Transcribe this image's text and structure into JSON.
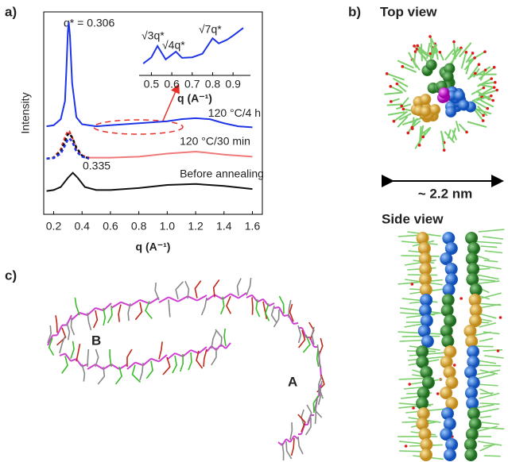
{
  "chart_data": [
    {
      "type": "line",
      "xlabel": "q (A⁻¹)",
      "ylabel": "Intensity",
      "xlim": [
        0.13,
        1.67
      ],
      "ylim": [
        0,
        10
      ],
      "xticks": [
        0.2,
        0.4,
        0.6,
        0.8,
        {
          "value": 1,
          "label": "1.0"
        },
        1.2,
        1.4,
        1.6
      ],
      "annotations": [
        "q* = 0.306",
        "0.335"
      ],
      "series": [
        {
          "name": "120 °C/4 h",
          "color": "#1f35e6",
          "style": "solid",
          "x": [
            0.15,
            0.2,
            0.25,
            0.28,
            0.29,
            0.3,
            0.306,
            0.315,
            0.33,
            0.36,
            0.4,
            0.5,
            0.6,
            0.8,
            1.0,
            1.1,
            1.2,
            1.3,
            1.4,
            1.5,
            1.6
          ],
          "values": [
            4.35,
            4.4,
            4.7,
            5.6,
            7.2,
            9.0,
            9.5,
            8.8,
            6.5,
            4.8,
            4.45,
            4.35,
            4.4,
            4.5,
            4.6,
            4.7,
            4.75,
            4.7,
            4.5,
            4.35,
            4.3
          ]
        },
        {
          "name": "120 °C/30 min",
          "color": "#f07a7a",
          "style": "solid",
          "x": [
            0.45,
            0.6,
            0.8,
            1.0,
            1.2,
            1.4,
            1.6
          ],
          "values": [
            2.8,
            2.8,
            2.85,
            3.0,
            3.1,
            2.95,
            2.85
          ]
        },
        {
          "color": "#e8302a",
          "style": "dashed",
          "x": [
            0.15,
            0.2,
            0.25,
            0.28,
            0.3,
            0.31,
            0.33,
            0.36,
            0.4,
            0.45
          ],
          "values": [
            2.75,
            2.8,
            3.2,
            3.8,
            4.1,
            4.1,
            3.8,
            3.2,
            2.9,
            2.8
          ]
        },
        {
          "color": "#111111",
          "style": "dashed",
          "x": [
            0.15,
            0.2,
            0.25,
            0.28,
            0.3,
            0.31,
            0.33,
            0.36,
            0.4,
            0.45
          ],
          "values": [
            2.75,
            2.8,
            3.1,
            3.6,
            3.95,
            4.0,
            3.8,
            3.3,
            2.9,
            2.75
          ]
        },
        {
          "color": "#1f35e6",
          "style": "dashed",
          "x": [
            0.15,
            0.2,
            0.25,
            0.28,
            0.3,
            0.31,
            0.33,
            0.36,
            0.4,
            0.45
          ],
          "values": [
            2.75,
            2.78,
            3.0,
            3.4,
            3.7,
            3.75,
            3.6,
            3.1,
            2.85,
            2.75
          ]
        },
        {
          "name": "Before annealing",
          "color": "#111111",
          "style": "solid",
          "x": [
            0.15,
            0.2,
            0.25,
            0.3,
            0.335,
            0.37,
            0.42,
            0.5,
            0.6,
            0.8,
            1.0,
            1.2,
            1.4,
            1.6
          ],
          "values": [
            1.15,
            1.2,
            1.35,
            1.8,
            2.05,
            1.8,
            1.35,
            1.2,
            1.2,
            1.3,
            1.45,
            1.5,
            1.4,
            1.25
          ]
        }
      ]
    },
    {
      "type": "line",
      "xlabel": "q (A⁻¹)",
      "xlim": [
        0.44,
        0.985
      ],
      "ylim": [
        0,
        10
      ],
      "xticks": [
        0.5,
        0.6,
        0.7,
        0.8,
        0.9
      ],
      "annotations": [
        "√3q*",
        "√4q*",
        "√7q*"
      ],
      "series": [
        {
          "color": "#1f35e6",
          "style": "solid",
          "x": [
            0.46,
            0.5,
            0.53,
            0.57,
            0.62,
            0.65,
            0.7,
            0.75,
            0.8,
            0.83,
            0.87,
            0.9,
            0.95
          ],
          "values": [
            2.3,
            3.5,
            5.7,
            3.1,
            4.6,
            3.4,
            3.5,
            4.2,
            7.2,
            6.2,
            6.9,
            7.7,
            9.2
          ]
        }
      ]
    }
  ],
  "panels": {
    "a": "a)",
    "b": "b)",
    "c": "c)",
    "top_view": "Top view",
    "size": "~ 2.2 nm",
    "side_view": "Side view",
    "label_b": "B",
    "label_a": "A"
  }
}
